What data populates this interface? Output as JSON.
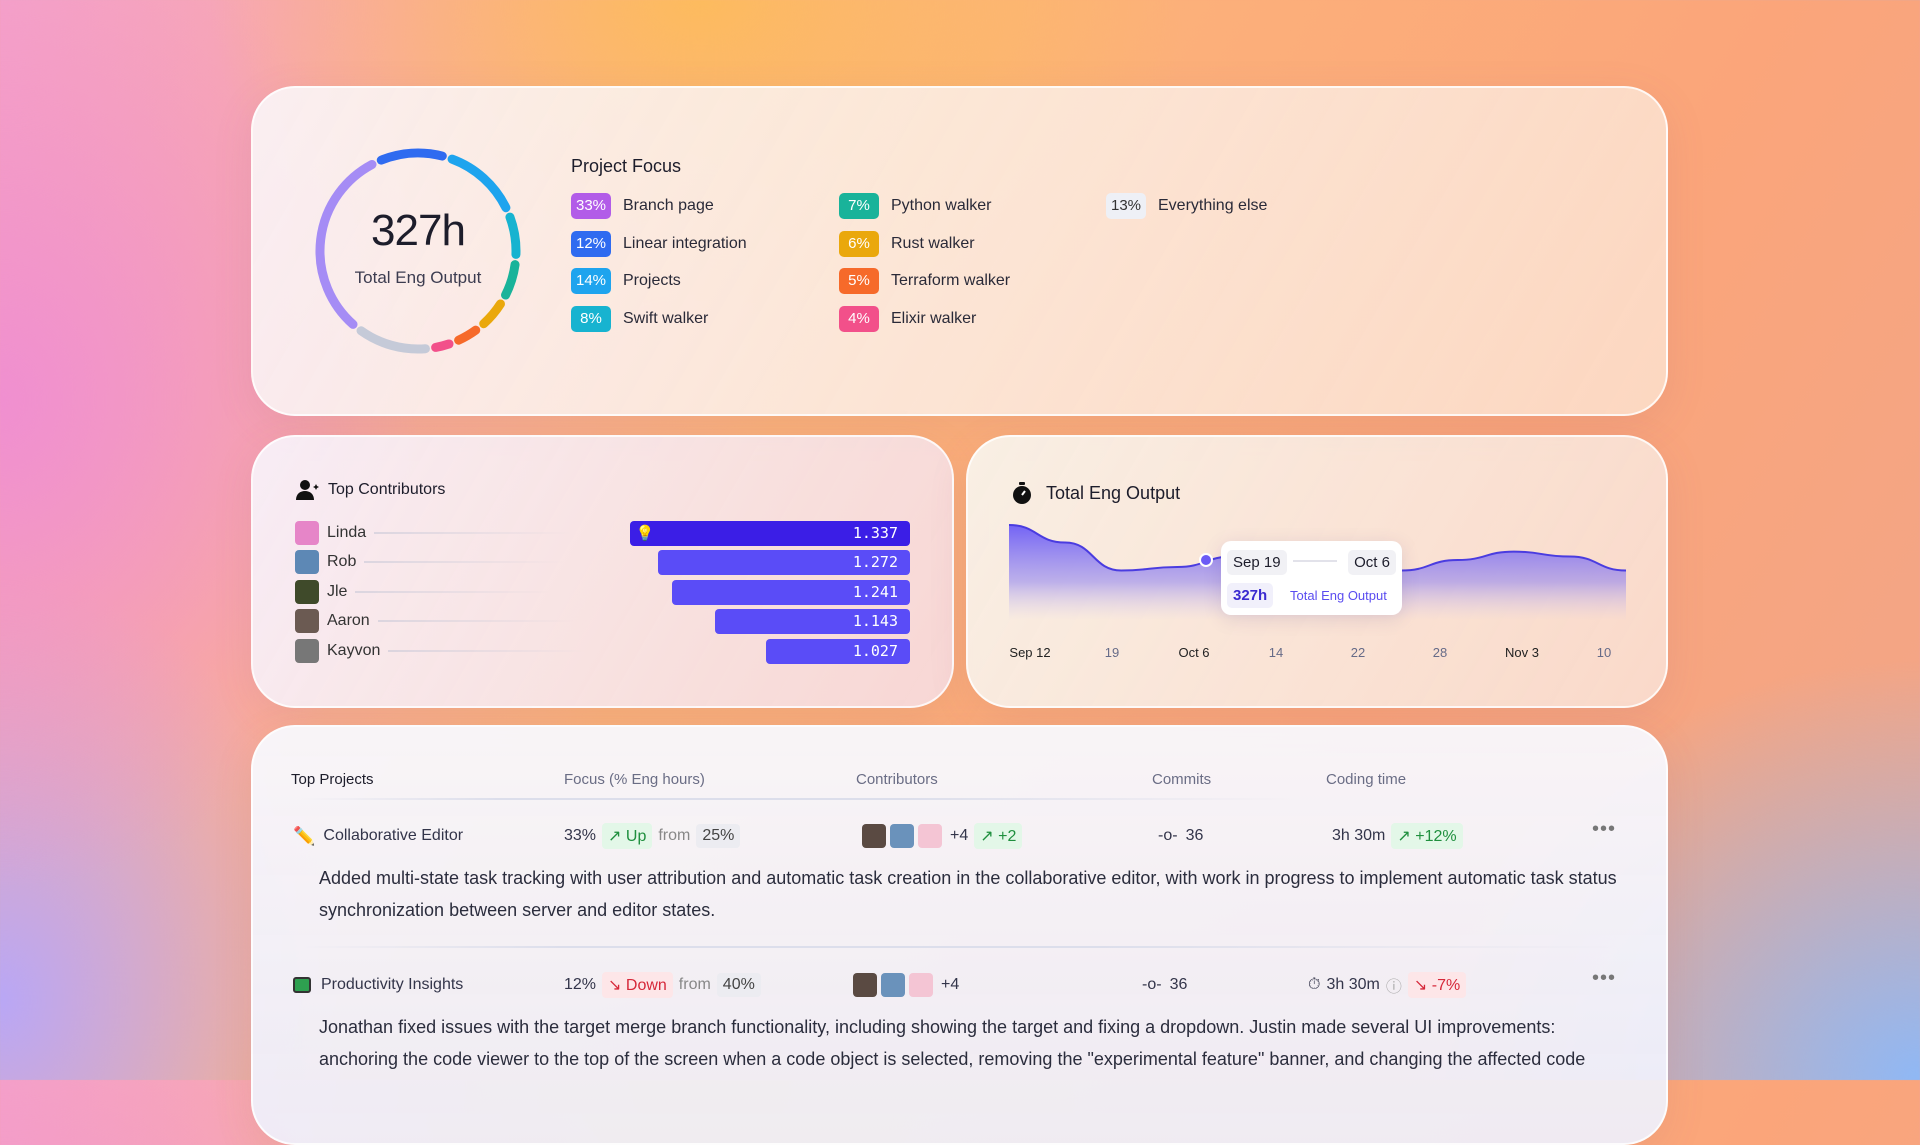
{
  "focus": {
    "total": "327h",
    "total_label": "Total Eng Output",
    "title": "Project Focus",
    "items": [
      {
        "pct": "33%",
        "value": 33,
        "label": "Branch page",
        "color": "#b25ce8"
      },
      {
        "pct": "12%",
        "value": 12,
        "label": "Linear integration",
        "color": "#2f6bf0"
      },
      {
        "pct": "14%",
        "value": 14,
        "label": "Projects",
        "color": "#1ea4ee"
      },
      {
        "pct": "8%",
        "value": 8,
        "label": "Swift walker",
        "color": "#17b3d0"
      },
      {
        "pct": "7%",
        "value": 7,
        "label": "Python walker",
        "color": "#19b39a"
      },
      {
        "pct": "6%",
        "value": 6,
        "label": "Rust walker",
        "color": "#eaa80c"
      },
      {
        "pct": "5%",
        "value": 5,
        "label": "Terraform walker",
        "color": "#f66a2a"
      },
      {
        "pct": "4%",
        "value": 4,
        "label": "Elixir walker",
        "color": "#f2508a"
      },
      {
        "pct": "13%",
        "value": 13,
        "label": "Everything else",
        "color": "#eef0f6"
      }
    ]
  },
  "contributors": {
    "title": "Top Contributors",
    "rows": [
      {
        "name": "Linda",
        "value": "1.337",
        "num": 1.337,
        "color": "#3b1ee6",
        "avatar": "#e685c8"
      },
      {
        "name": "Rob",
        "value": "1.272",
        "num": 1.272,
        "color": "#5a4cf7",
        "avatar": "#5d88b5"
      },
      {
        "name": "Jle",
        "value": "1.241",
        "num": 1.241,
        "color": "#5a4cf7",
        "avatar": "#3f4a2a"
      },
      {
        "name": "Aaron",
        "value": "1.143",
        "num": 1.143,
        "color": "#5a4cf7",
        "avatar": "#6b5a52"
      },
      {
        "name": "Kayvon",
        "value": "1.027",
        "num": 1.027,
        "color": "#5a4cf7",
        "avatar": "#777"
      }
    ]
  },
  "output": {
    "title": "Total Eng Output",
    "tooltip": {
      "from": "Sep 19",
      "to": "Oct 6",
      "value": "327h",
      "label": "Total Eng Output"
    }
  },
  "chart_data": {
    "type": "area",
    "title": "Total Eng Output",
    "x_labels": [
      "Sep 12",
      "19",
      "Oct 6",
      "14",
      "22",
      "28",
      "Nov 3",
      "10"
    ],
    "values": [
      1.0,
      0.75,
      0.35,
      0.4,
      0.55,
      0.62,
      0.5,
      0.35,
      0.5,
      0.62,
      0.55,
      0.35
    ],
    "color": "#5b4cf5",
    "grid": false
  },
  "projects": {
    "headers": [
      "Top Projects",
      "Focus (% Eng hours)",
      "Contributors",
      "Commits",
      "Coding time"
    ],
    "rows": [
      {
        "name": "Collaborative Editor",
        "icon": "pencil",
        "focus": "33%",
        "trend": "Up",
        "from": "from",
        "prev": "25%",
        "extra": "+4",
        "delta": "+2",
        "commits": "36",
        "time": "3h 30m",
        "time_delta": "+12%",
        "desc": "Added multi-state task tracking with user attribution and automatic task creation in the collaborative editor, with work in progress to implement automatic task status synchronization between server and editor states."
      },
      {
        "name": "Productivity Insights",
        "icon": "monitor",
        "focus": "12%",
        "trend": "Down",
        "from": "from",
        "prev": "40%",
        "extra": "+4",
        "commits": "36",
        "time": "3h 30m",
        "time_delta": "-7%",
        "desc": "Jonathan fixed issues with the target merge branch functionality, including showing the target and fixing a dropdown. Justin made several UI improvements: anchoring the code viewer to the top of the screen when a code object is selected, removing the \"experimental feature\" banner, and changing the affected code"
      }
    ]
  }
}
